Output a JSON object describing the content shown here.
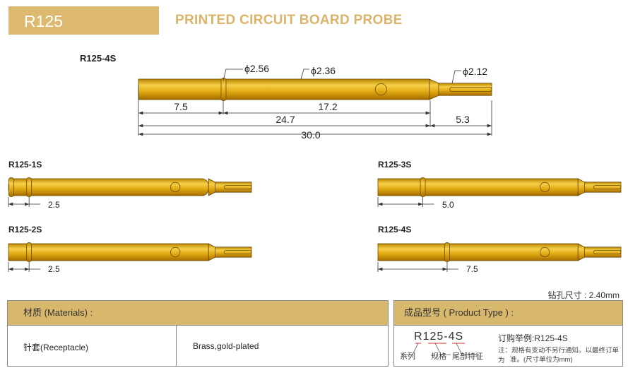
{
  "header": {
    "series": "R125",
    "title": "PRINTED CIRCUIT BOARD  PROBE"
  },
  "main_probe": {
    "label": "R125-4S",
    "diameters": {
      "collar": "ϕ2.56",
      "body": "ϕ2.36",
      "tip": "ϕ2.12"
    },
    "dims": {
      "d1": "7.5",
      "d2": "17.2",
      "d3": "24.7",
      "d4": "5.3",
      "total": "30.0"
    }
  },
  "variants": [
    {
      "label": "R125-1S",
      "dim": "2.5"
    },
    {
      "label": "R125-2S",
      "dim": "2.5"
    },
    {
      "label": "R125-3S",
      "dim": "5.0"
    },
    {
      "label": "R125-4S",
      "dim": "7.5"
    }
  ],
  "drill_size": "钻孔尺寸 : 2.40mm",
  "materials": {
    "header": "材质 (Materials) :",
    "part": "针套(Receptacle)",
    "material": "Brass,gold-plated"
  },
  "product_type": {
    "header": "成品型号 ( Product Type ) :",
    "code": "R125-4S",
    "parts": [
      "系列",
      "规格",
      "尾部特征"
    ],
    "order_example": "订购举例:R125-4S",
    "note1": "注：规格有变动不另行通知。以最终订单为",
    "note2": "准。(尺寸单位为mm)"
  },
  "colors": {
    "gold_bar": "#dcb96e",
    "title": "#d9b46a",
    "probe_gold": "#e3b21c"
  }
}
